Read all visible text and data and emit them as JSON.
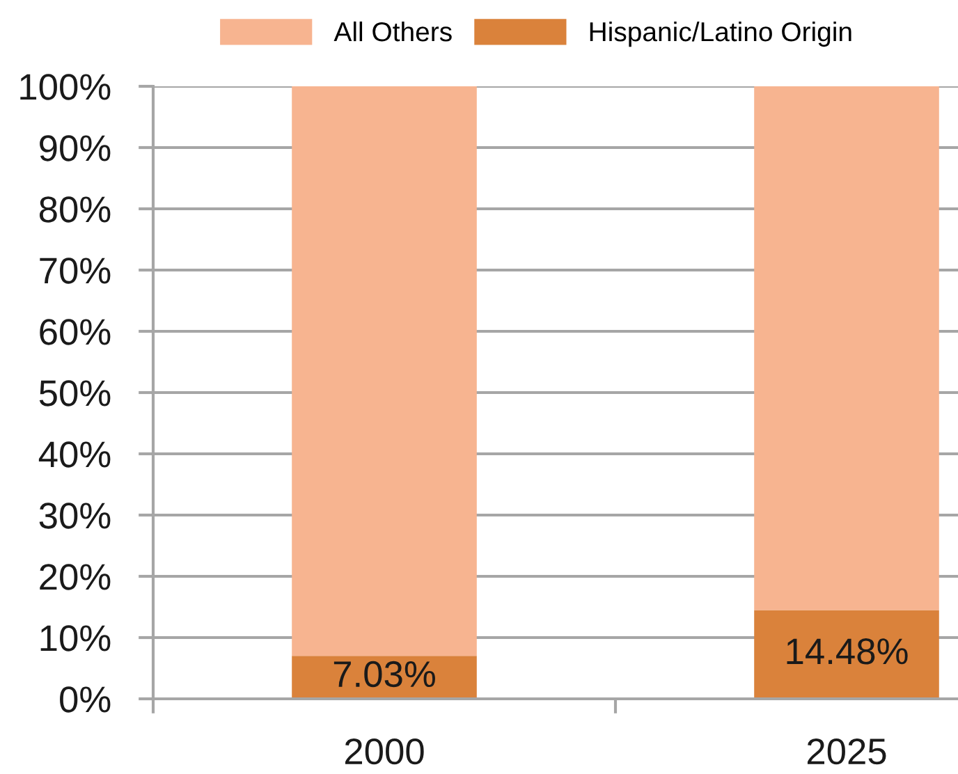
{
  "chart_data": {
    "type": "bar",
    "stacked": true,
    "categories": [
      "2000",
      "2025"
    ],
    "series": [
      {
        "name": "Hispanic/Latino Origin",
        "color": "#da823b",
        "values": [
          7.03,
          14.48
        ],
        "value_labels": [
          "7.03%",
          "14.48%"
        ]
      },
      {
        "name": "All Others",
        "color": "#f7b490",
        "values": [
          92.97,
          85.52
        ]
      }
    ],
    "ylim": [
      0,
      100
    ],
    "yticks": [
      {
        "value": 0,
        "label": "0%"
      },
      {
        "value": 10,
        "label": "10%"
      },
      {
        "value": 20,
        "label": "20%"
      },
      {
        "value": 30,
        "label": "30%"
      },
      {
        "value": 40,
        "label": "40%"
      },
      {
        "value": 50,
        "label": "50%"
      },
      {
        "value": 60,
        "label": "60%"
      },
      {
        "value": 70,
        "label": "70%"
      },
      {
        "value": 80,
        "label": "80%"
      },
      {
        "value": 90,
        "label": "90%"
      },
      {
        "value": 100,
        "label": "100%"
      }
    ],
    "grid": "y",
    "legend": "top"
  }
}
